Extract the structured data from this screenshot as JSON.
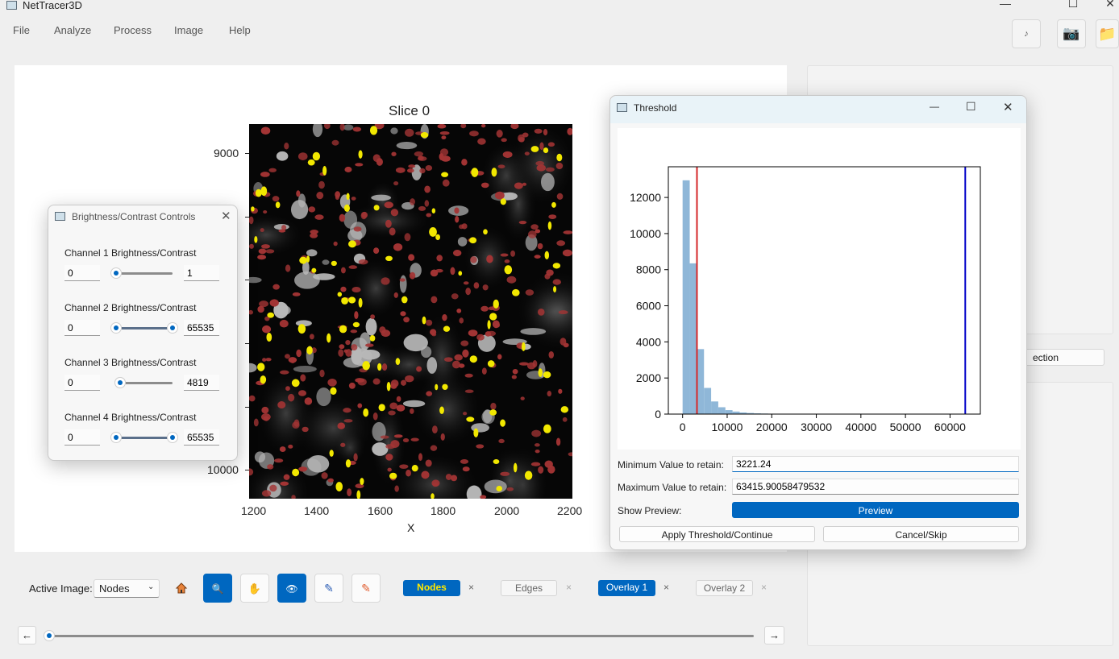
{
  "window": {
    "title": "NetTracer3D",
    "minimize": "—",
    "maximize": "☐",
    "close": "✕"
  },
  "menu": [
    "File",
    "Analyze",
    "Process",
    "Image",
    "Help"
  ],
  "top_buttons": [
    {
      "name": "music-icon",
      "glyph": "♪"
    },
    {
      "name": "camera-icon",
      "glyph": "📷"
    },
    {
      "name": "folder-icon",
      "glyph": "📁"
    }
  ],
  "plot": {
    "title": "Slice 0",
    "xlabel": "X",
    "x_ticks": [
      "1200",
      "1400",
      "1600",
      "1800",
      "2000",
      "2200"
    ],
    "y_ticks_visible": [
      "9000",
      "10000"
    ]
  },
  "brightness_dialog": {
    "title": "Brightness/Contrast Controls",
    "close": "✕",
    "channels": [
      {
        "label": "Channel 1 Brightness/Contrast",
        "min": "0",
        "max": "1",
        "low": 0.0,
        "high": 0.0
      },
      {
        "label": "Channel 2 Brightness/Contrast",
        "min": "0",
        "max": "65535",
        "low": 0.0,
        "high": 1.0
      },
      {
        "label": "Channel 3 Brightness/Contrast",
        "min": "0",
        "max": "4819",
        "low": 0.07,
        "high": 0.07
      },
      {
        "label": "Channel 4 Brightness/Contrast",
        "min": "0",
        "max": "65535",
        "low": 0.0,
        "high": 1.0
      }
    ]
  },
  "threshold_dialog": {
    "title": "Threshold",
    "minimize": "—",
    "maximize": "☐",
    "close": "✕",
    "min_label": "Minimum Value to retain:",
    "min_value": "3221.24",
    "max_label": "Maximum Value to retain:",
    "max_value": "63415.90058479532",
    "preview_label": "Show Preview:",
    "preview_button": "Preview",
    "apply_button": "Apply Threshold/Continue",
    "cancel_button": "Cancel/Skip"
  },
  "chart_data": {
    "type": "bar",
    "title": "",
    "xlabel": "",
    "ylabel": "",
    "x_ticks": [
      "0",
      "10000",
      "20000",
      "30000",
      "40000",
      "50000",
      "60000"
    ],
    "y_ticks": [
      "0",
      "2000",
      "4000",
      "6000",
      "8000",
      "10000",
      "12000"
    ],
    "xlim": [
      -3200,
      66800
    ],
    "ylim": [
      0,
      13700
    ],
    "bin_width": 1600,
    "bin_starts": [
      0,
      1600,
      3200,
      4800,
      6400,
      8000,
      9600,
      11200,
      12800,
      14400,
      16000,
      17600,
      19200,
      20800
    ],
    "counts": [
      12950,
      8350,
      3600,
      1450,
      700,
      380,
      220,
      140,
      90,
      60,
      40,
      30,
      20,
      10
    ],
    "vlines": [
      {
        "x": 3221.24,
        "color": "#d62728"
      },
      {
        "x": 63415.9,
        "color": "#0000c8"
      }
    ],
    "bar_color": "#8fb7d8"
  },
  "right_panel": {
    "button_fragment": "ection"
  },
  "toolbar": {
    "active_image_label": "Active Image:",
    "active_image_value": "Nodes",
    "chips": [
      {
        "label": "Nodes",
        "state": "active-yellow"
      },
      {
        "label": "Edges",
        "state": "inactive"
      },
      {
        "label": "Overlay 1",
        "state": "active"
      },
      {
        "label": "Overlay 2",
        "state": "inactive"
      }
    ],
    "chip_close": "×",
    "slice_left": "←",
    "slice_right": "→",
    "slice_position": 0.0
  }
}
